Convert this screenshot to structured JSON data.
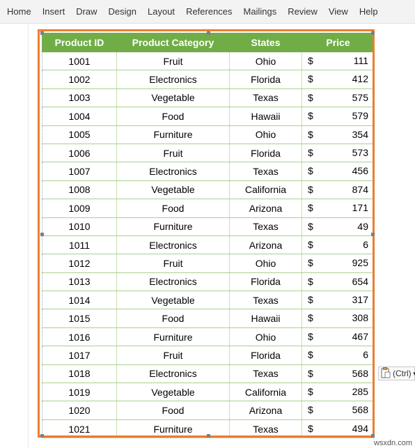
{
  "ribbon": {
    "tabs": [
      "Home",
      "Insert",
      "Draw",
      "Design",
      "Layout",
      "References",
      "Mailings",
      "Review",
      "View",
      "Help"
    ]
  },
  "table": {
    "headers": [
      "Product ID",
      "Product Category",
      "States",
      "Price"
    ],
    "rows": [
      {
        "id": "1001",
        "category": "Fruit",
        "state": "Ohio",
        "currency": "$",
        "price": "111"
      },
      {
        "id": "1002",
        "category": "Electronics",
        "state": "Florida",
        "currency": "$",
        "price": "412"
      },
      {
        "id": "1003",
        "category": "Vegetable",
        "state": "Texas",
        "currency": "$",
        "price": "575"
      },
      {
        "id": "1004",
        "category": "Food",
        "state": "Hawaii",
        "currency": "$",
        "price": "579"
      },
      {
        "id": "1005",
        "category": "Furniture",
        "state": "Ohio",
        "currency": "$",
        "price": "354"
      },
      {
        "id": "1006",
        "category": "Fruit",
        "state": "Florida",
        "currency": "$",
        "price": "573"
      },
      {
        "id": "1007",
        "category": "Electronics",
        "state": "Texas",
        "currency": "$",
        "price": "456"
      },
      {
        "id": "1008",
        "category": "Vegetable",
        "state": "California",
        "currency": "$",
        "price": "874"
      },
      {
        "id": "1009",
        "category": "Food",
        "state": "Arizona",
        "currency": "$",
        "price": "171"
      },
      {
        "id": "1010",
        "category": "Furniture",
        "state": "Texas",
        "currency": "$",
        "price": "49"
      },
      {
        "id": "1011",
        "category": "Electronics",
        "state": "Arizona",
        "currency": "$",
        "price": "6"
      },
      {
        "id": "1012",
        "category": "Fruit",
        "state": "Ohio",
        "currency": "$",
        "price": "925"
      },
      {
        "id": "1013",
        "category": "Electronics",
        "state": "Florida",
        "currency": "$",
        "price": "654"
      },
      {
        "id": "1014",
        "category": "Vegetable",
        "state": "Texas",
        "currency": "$",
        "price": "317"
      },
      {
        "id": "1015",
        "category": "Food",
        "state": "Hawaii",
        "currency": "$",
        "price": "308"
      },
      {
        "id": "1016",
        "category": "Furniture",
        "state": "Ohio",
        "currency": "$",
        "price": "467"
      },
      {
        "id": "1017",
        "category": "Fruit",
        "state": "Florida",
        "currency": "$",
        "price": "6"
      },
      {
        "id": "1018",
        "category": "Electronics",
        "state": "Texas",
        "currency": "$",
        "price": "568"
      },
      {
        "id": "1019",
        "category": "Vegetable",
        "state": "California",
        "currency": "$",
        "price": "285"
      },
      {
        "id": "1020",
        "category": "Food",
        "state": "Arizona",
        "currency": "$",
        "price": "568"
      },
      {
        "id": "1021",
        "category": "Furniture",
        "state": "Texas",
        "currency": "$",
        "price": "494"
      }
    ]
  },
  "paste_options": {
    "label": "(Ctrl)",
    "icon": "clipboard-icon"
  },
  "watermark": "wsxdn.com",
  "colors": {
    "header_bg": "#70ad47",
    "selection_border": "#ed7d31",
    "row_border": "#a9d08e"
  }
}
